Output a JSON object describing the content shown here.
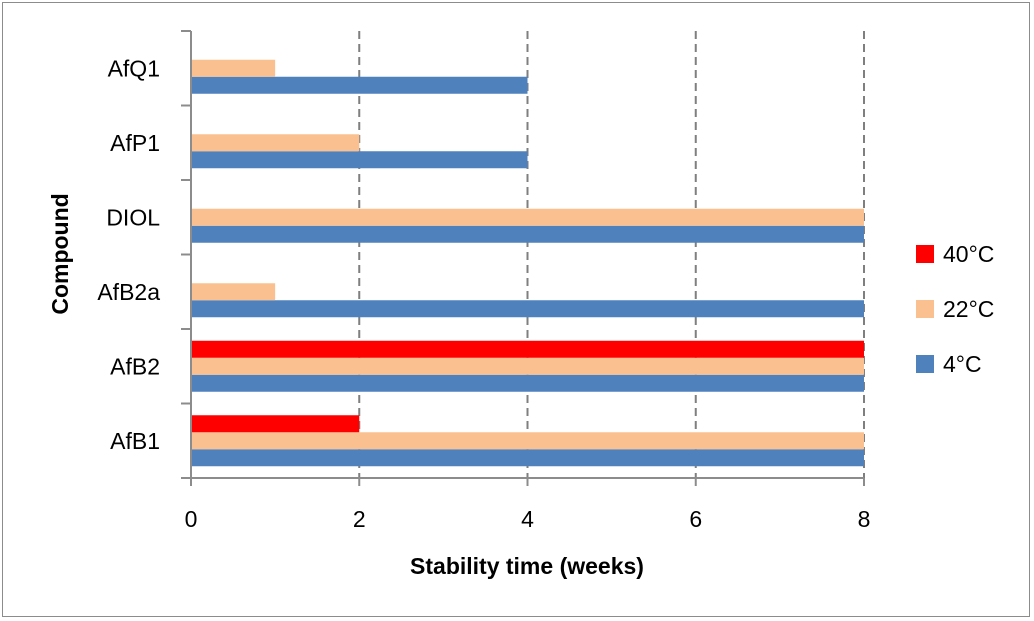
{
  "chart_data": {
    "type": "bar",
    "orientation": "horizontal",
    "title": "",
    "xlabel": "Stability time (weeks)",
    "ylabel": "Compound",
    "xlim": [
      0,
      8
    ],
    "xticks": [
      0,
      2,
      4,
      6,
      8
    ],
    "grid": "vertical-dashed",
    "legend_position": "right",
    "categories": [
      "AfB1",
      "AfB2",
      "AfB2a",
      "DIOL",
      "AfP1",
      "AfQ1"
    ],
    "series": [
      {
        "name": "4°C",
        "color": "#4F81BD",
        "values": [
          8,
          8,
          8,
          8,
          4,
          4
        ]
      },
      {
        "name": "22°C",
        "color": "#FAC090",
        "values": [
          8,
          8,
          1,
          8,
          2,
          1
        ]
      },
      {
        "name": "40°C",
        "color": "#FF0000",
        "values": [
          2,
          8,
          0,
          0,
          0,
          0
        ]
      }
    ],
    "legend_order": [
      "40°C",
      "22°C",
      "4°C"
    ]
  }
}
